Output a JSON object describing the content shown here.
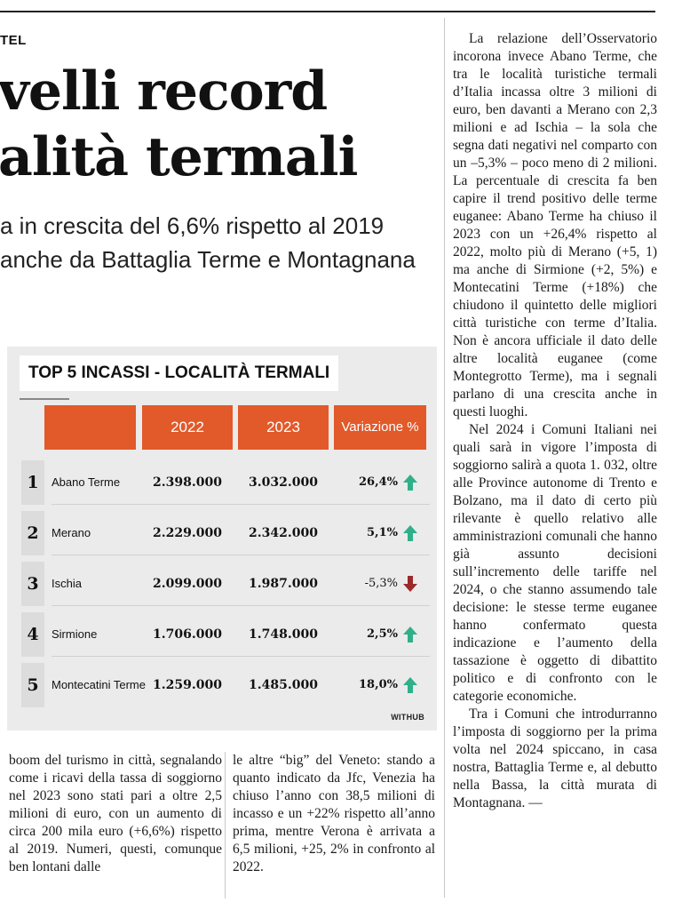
{
  "kicker": "TEL",
  "headline": {
    "line1": "velli record",
    "line2": "alità termali"
  },
  "subhead": {
    "line1": "a in crescita del 6,6% rispetto al 2019",
    "line2": "anche da Battaglia Terme e Montagnana"
  },
  "graphic": {
    "title": "TOP 5 INCASSI - LOCALITÀ TERMALI",
    "credit": "WITHUB",
    "colors": {
      "header": "#e2592a",
      "up": "#2fb08a",
      "down": "#9b2a2a",
      "panel": "#ebebeb"
    },
    "headers": [
      "2022",
      "2023",
      "Variazione %"
    ],
    "rows": [
      {
        "rank": "1",
        "place": "Abano Terme",
        "y2022": "2.398.000",
        "y2023": "3.032.000",
        "variation": "26,4%",
        "trend": "up"
      },
      {
        "rank": "2",
        "place": "Merano",
        "y2022": "2.229.000",
        "y2023": "2.342.000",
        "variation": "5,1%",
        "trend": "up"
      },
      {
        "rank": "3",
        "place": "Ischia",
        "y2022": "2.099.000",
        "y2023": "1.987.000",
        "variation": "-5,3%",
        "trend": "down"
      },
      {
        "rank": "4",
        "place": "Sirmione",
        "y2022": "1.706.000",
        "y2023": "1.748.000",
        "variation": "2,5%",
        "trend": "up"
      },
      {
        "rank": "5",
        "place": "Montecatini Terme",
        "y2022": "1.259.000",
        "y2023": "1.485.000",
        "variation": "18,0%",
        "trend": "up"
      }
    ]
  },
  "columns": {
    "right": [
      "La relazione dell’Osservatorio incorona invece Abano Terme, che tra le località turistiche termali d’Italia incassa oltre 3 milioni di euro, ben davanti a Merano con 2,3 milioni e ad Ischia – la sola che segna dati negativi nel comparto con un –5,3% – poco meno di 2 milioni. La percentuale di crescita fa ben capire il trend positivo delle terme euganee: Abano Terme ha chiuso il 2023 con un +26,4% rispetto al 2022, molto più di Merano (+5, 1) ma anche di Sirmione (+2, 5%) e Montecatini Terme (+18%) che chiudono il quintetto delle migliori città turistiche con terme d’Italia. Non è ancora ufficiale il dato delle altre località euganee (come Montegrotto Terme), ma i segnali parlano di una crescita anche in questi luoghi.",
      "Nel 2024 i Comuni Italiani nei quali sarà in vigore l’imposta di soggiorno salirà a quota 1. 032, oltre alle Province autonome di Trento e Bolzano, ma il dato di certo più rilevante è quello relativo alle amministrazioni comunali che hanno già assunto decisioni sull’incremento delle tariffe nel 2024, o che stanno assumendo tale decisione: le stesse terme euganee hanno confermato questa indicazione e l’aumento della tassazione è oggetto di dibattito politico e di confronto con le categorie economiche.",
      "Tra i Comuni che introdurranno l’imposta di soggiorno per la prima volta nel 2024 spiccano, in casa nostra, Battaglia Terme e, al debutto nella Bassa, la città murata di Montagnana. —"
    ],
    "bottom_left": "boom del turismo in città, segnalando come i ricavi della tassa di soggiorno nel 2023 sono stati pari a oltre 2,5 milioni di euro, con un aumento di circa 200 mila euro (+6,6%) rispetto al 2019. Numeri, questi, comunque ben lontani dalle",
    "bottom_middle": "le altre “big” del Veneto: stando a quanto indicato da Jfc, Venezia ha chiuso l’anno con 38,5 milioni di incasso e un +22% rispetto all’anno prima, mentre Verona è arrivata a 6,5 milioni, +25, 2% in confronto al 2022."
  }
}
